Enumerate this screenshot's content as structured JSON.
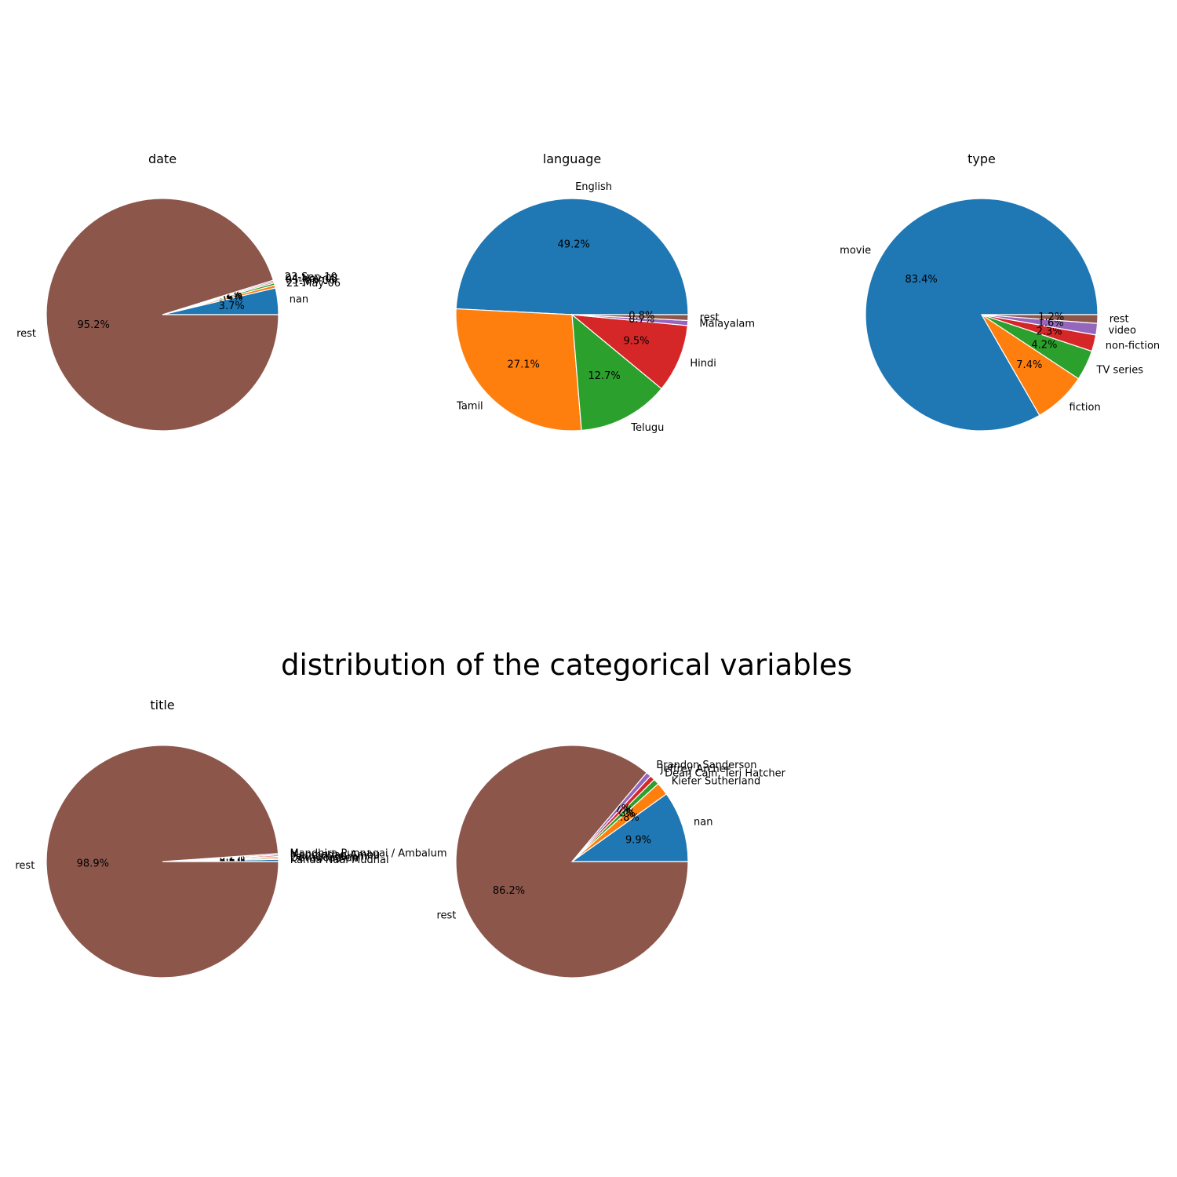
{
  "figure_title": "distribution of the categorical variables",
  "chart_data": [
    {
      "type": "pie",
      "title": "date",
      "labels": [
        "nan",
        "21-May-06",
        "05-Jan-06",
        "04-Nov-08",
        "23-Sep-10",
        "rest"
      ],
      "values": [
        3.7,
        0.4,
        0.3,
        0.2,
        0.2,
        95.2
      ],
      "percent_labels": [
        "3.7%",
        "0.4%",
        "0.3%",
        "0.2%",
        "0.2%",
        "95.2%"
      ],
      "colors": [
        "#1f77b4",
        "#ff7f0e",
        "#2ca02c",
        "#d62728",
        "#9467bd",
        "#8c564b"
      ]
    },
    {
      "type": "pie",
      "title": "language",
      "labels": [
        "English",
        "Tamil",
        "Telugu",
        "Hindi",
        "Malayalam",
        "rest"
      ],
      "values": [
        49.2,
        27.1,
        12.7,
        9.5,
        0.7,
        0.8
      ],
      "percent_labels": [
        "49.2%",
        "27.1%",
        "12.7%",
        "9.5%",
        "0.7%",
        "0.8%"
      ],
      "colors": [
        "#1f77b4",
        "#ff7f0e",
        "#2ca02c",
        "#d62728",
        "#9467bd",
        "#8c564b"
      ]
    },
    {
      "type": "pie",
      "title": "type",
      "labels": [
        "movie",
        "fiction",
        "TV series",
        "non-fiction",
        "video",
        "rest"
      ],
      "values": [
        83.4,
        7.4,
        4.2,
        2.3,
        1.6,
        1.2
      ],
      "percent_labels": [
        "83.4%",
        "7.4%",
        "4.2%",
        "2.3%",
        "1.6%",
        "1.2%"
      ],
      "colors": [
        "#1f77b4",
        "#ff7f0e",
        "#2ca02c",
        "#d62728",
        "#9467bd",
        "#8c564b"
      ]
    },
    {
      "type": "pie",
      "title": "title",
      "labels": [
        "Kanda Naal Mudhal",
        "Devadoothan",
        "Pennathigaram",
        "Manmadan Ambu",
        "Mandhira Punnagai / Ambalum",
        "rest"
      ],
      "values": [
        0.3,
        0.2,
        0.2,
        0.2,
        0.2,
        98.9
      ],
      "percent_labels": [
        "0.3%",
        "0.2%",
        "0.2%",
        "0.2%",
        "0.2%",
        "98.9%"
      ],
      "colors": [
        "#1f77b4",
        "#ff7f0e",
        "#2ca02c",
        "#d62728",
        "#9467bd",
        "#8c564b"
      ]
    },
    {
      "type": "pie",
      "title": "",
      "labels": [
        "nan",
        "Kiefer Sutherland",
        "Dean Cain, Teri Hatcher",
        "Jeffrey Archer",
        "Brandon Sanderson",
        "rest"
      ],
      "values": [
        9.9,
        1.8,
        0.8,
        0.7,
        0.7,
        86.2
      ],
      "percent_labels": [
        "9.9%",
        "1.8%",
        "0.8%",
        "0.7%",
        "0.7%",
        "86.2%"
      ],
      "colors": [
        "#1f77b4",
        "#ff7f0e",
        "#2ca02c",
        "#d62728",
        "#9467bd",
        "#8c564b"
      ]
    }
  ]
}
